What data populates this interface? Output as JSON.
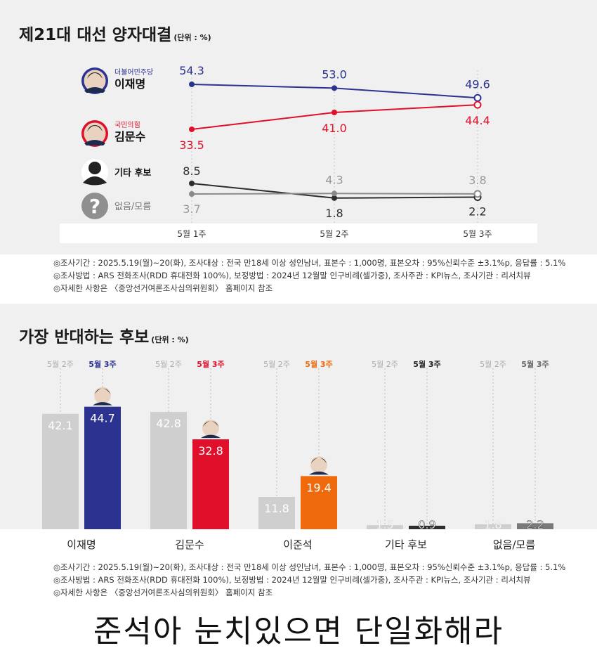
{
  "line_section": {
    "title": "제21대 대선 양자대결",
    "unit": "(단위 : %)"
  },
  "bar_section": {
    "title": "가장 반대하는 후보",
    "unit": "(단위 : %)"
  },
  "notes": [
    "◎조사기간 : 2025.5.19(월)~20(화), 조사대상 : 전국 만18세 이상 성인남녀, 표본수 : 1,000명, 표본오차 : 95%신뢰수준 ±3.1%p, 응답률 : 5.1%",
    "◎조사방법 : ARS 전화조사(RDD 휴대전화 100%), 보정방법 : 2024년 12월말 인구비례(셀가중), 조사주관 : KPI뉴스, 조사기관 : 리서치뷰",
    "◎자세한 사항은 〈중앙선거여론조사심의위원회〉 홈페이지 참조"
  ],
  "bottom_caption": "준석아 눈치있으면 단일화해라",
  "colors": {
    "lee": "#2b3290",
    "kim": "#e0102a",
    "other": "#2e2e2e",
    "none": "#8a8a8a",
    "lee_jun": "#ee6a0c",
    "prev_bar": "#cfcfcf"
  },
  "chart_data": [
    {
      "type": "line",
      "x": [
        "5월 1주",
        "5월 2주",
        "5월 3주"
      ],
      "series": [
        {
          "key": "lee",
          "name": "이재명",
          "party": "더불어민주당",
          "values": [
            54.3,
            53.0,
            49.6
          ],
          "labels": [
            "54.3",
            "53.0",
            "49.6"
          ],
          "color": "#2b3290",
          "icon": "person-photo-icon"
        },
        {
          "key": "kim",
          "name": "김문수",
          "party": "국민의힘",
          "values": [
            33.5,
            41.0,
            44.4
          ],
          "labels": [
            "33.5",
            "41.0",
            "44.4"
          ],
          "color": "#e0102a",
          "icon": "person-photo-icon"
        },
        {
          "key": "other",
          "name": "기타 후보",
          "party": "",
          "values": [
            8.5,
            1.8,
            2.2
          ],
          "labels": [
            "8.5",
            "1.8",
            "2.2"
          ],
          "color": "#2e2e2e",
          "icon": "person-silhouette-icon"
        },
        {
          "key": "none",
          "name": "없음/모름",
          "party": "",
          "values": [
            3.7,
            4.3,
            3.8
          ],
          "labels": [
            "3.7",
            "4.3",
            "3.8"
          ],
          "color": "#8a8a8a",
          "icon": "question-mark-icon"
        }
      ]
    },
    {
      "type": "bar",
      "categories": [
        "이재명",
        "김문수",
        "이준석",
        "기타 후보",
        "없음/모름"
      ],
      "period_labels": [
        "5월 2주",
        "5월 3주"
      ],
      "series": [
        {
          "name": "5월 2주",
          "values": [
            42.1,
            42.8,
            11.8,
            1.5,
            1.8
          ],
          "labels": [
            "42.1",
            "42.8",
            "11.8",
            "1.5",
            "1.8"
          ]
        },
        {
          "name": "5월 3주",
          "values": [
            44.7,
            32.8,
            19.4,
            0.9,
            2.2
          ],
          "labels": [
            "44.7",
            "32.8",
            "19.4",
            "0.9",
            "2.2"
          ]
        }
      ],
      "current_colors": [
        "#2b3290",
        "#e0102a",
        "#ee6a0c",
        "#2e2e2e",
        "#7a7a7a"
      ],
      "current_label_colors": [
        "#2b3290",
        "#e0102a",
        "#ee6a0c",
        "#222222",
        "#666666"
      ]
    }
  ]
}
